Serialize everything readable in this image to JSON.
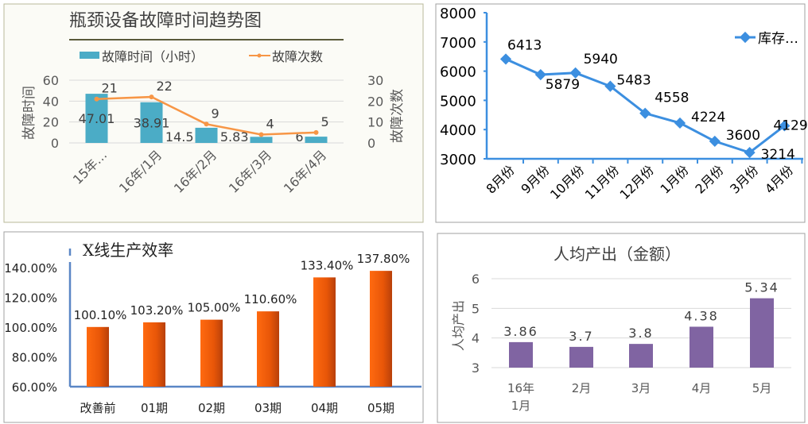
{
  "chart_data": [
    {
      "type": "bar",
      "title": "瓶颈设备故障时间趋势图",
      "categories": [
        "15年…",
        "16年/1月",
        "16年/2月",
        "16年/3月",
        "16年/4月"
      ],
      "series": [
        {
          "name": "故障时间（小时）",
          "type": "bar",
          "axis": "left",
          "values": [
            47.01,
            38.91,
            14.5,
            5.83,
            6
          ],
          "labels": [
            "47.01",
            "38.91",
            "14.5",
            "5.83",
            "6"
          ],
          "color": "#4bacc6"
        },
        {
          "name": "故障次数",
          "type": "line",
          "axis": "right",
          "values": [
            21,
            22,
            9,
            4,
            5
          ],
          "labels": [
            "21",
            "22",
            "9",
            "4",
            "5"
          ],
          "color": "#f79646"
        }
      ],
      "ylabel": "故障时间",
      "y2label": "故障次数",
      "ylim": [
        0,
        60
      ],
      "y2lim": [
        0,
        30
      ],
      "yticks": [
        "0",
        "20",
        "40",
        "60"
      ],
      "y2ticks": [
        "0",
        "10",
        "20",
        "30"
      ],
      "legend": "top",
      "grid": true
    },
    {
      "type": "line",
      "title": "",
      "categories": [
        "8月份",
        "9月份",
        "10月份",
        "11月份",
        "12月份",
        "1月份",
        "2月份",
        "3月份",
        "4月份"
      ],
      "series": [
        {
          "name": "库存…",
          "values": [
            6413,
            5879,
            5940,
            5483,
            4558,
            4224,
            3600,
            3214,
            4129
          ],
          "color": "#3c8fe0"
        }
      ],
      "ylim": [
        3000,
        8000
      ],
      "yticks": [
        "3000",
        "4000",
        "5000",
        "6000",
        "7000",
        "8000"
      ],
      "legend": "top-right",
      "grid": false
    },
    {
      "type": "bar",
      "title": "X线生产效率",
      "categories": [
        "改善前",
        "01期",
        "02期",
        "03期",
        "04期",
        "05期"
      ],
      "series": [
        {
          "name": "生产效率",
          "values": [
            100.1,
            103.2,
            105.0,
            110.6,
            133.4,
            137.8
          ],
          "labels": [
            "100.10%",
            "103.20%",
            "105.00%",
            "110.60%",
            "133.40%",
            "137.80%"
          ],
          "color": "#e8550a"
        }
      ],
      "ylim": [
        60,
        140
      ],
      "yticks": [
        "60.00%",
        "80.00%",
        "100.00%",
        "120.00%",
        "140.00%"
      ],
      "grid": false
    },
    {
      "type": "bar",
      "title": "人均产出（金额）",
      "categories": [
        "16年\n1月",
        "2月",
        "3月",
        "4月",
        "5月"
      ],
      "series": [
        {
          "name": "人均产出",
          "values": [
            3.86,
            3.7,
            3.8,
            4.38,
            5.34
          ],
          "labels": [
            "3.86",
            "3.7",
            "3.8",
            "4.38",
            "5.34"
          ],
          "color": "#8064a2"
        }
      ],
      "ylabel": "人均产出",
      "ylim": [
        3,
        6
      ],
      "yticks": [
        "3",
        "4",
        "5",
        "6"
      ],
      "grid": true
    }
  ]
}
